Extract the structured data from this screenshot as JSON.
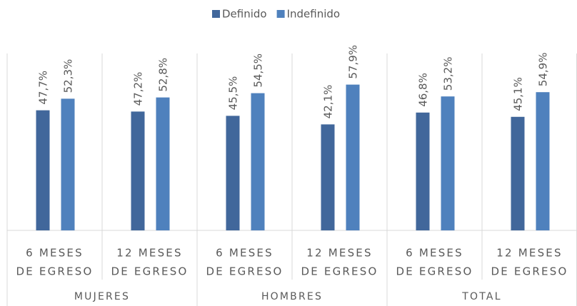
{
  "chart_data": {
    "type": "bar",
    "groups": [
      "MUJERES",
      "HOMBRES",
      "TOTAL"
    ],
    "categories": [
      [
        "6 MESES",
        "DE EGRESO"
      ],
      [
        "12 MESES",
        "DE EGRESO"
      ],
      [
        "6 MESES",
        "DE EGRESO"
      ],
      [
        "12 MESES",
        "DE EGRESO"
      ],
      [
        "6 MESES",
        "DE EGRESO"
      ],
      [
        "12 MESES",
        "DE EGRESO"
      ]
    ],
    "series": [
      {
        "name": "Definido",
        "color": "#41679b",
        "values": [
          47.7,
          47.2,
          45.5,
          42.1,
          46.8,
          45.1
        ],
        "value_labels": [
          "47,7%",
          "47,2%",
          "45,5%",
          "42,1%",
          "46,8%",
          "45,1%"
        ]
      },
      {
        "name": "Indefinido",
        "color": "#4f81bd",
        "values": [
          52.3,
          52.8,
          54.5,
          57.9,
          53.2,
          54.9
        ],
        "value_labels": [
          "52,3%",
          "52,8%",
          "54,5%",
          "57,9%",
          "53,2%",
          "54,9%"
        ]
      }
    ],
    "legend": "top"
  }
}
